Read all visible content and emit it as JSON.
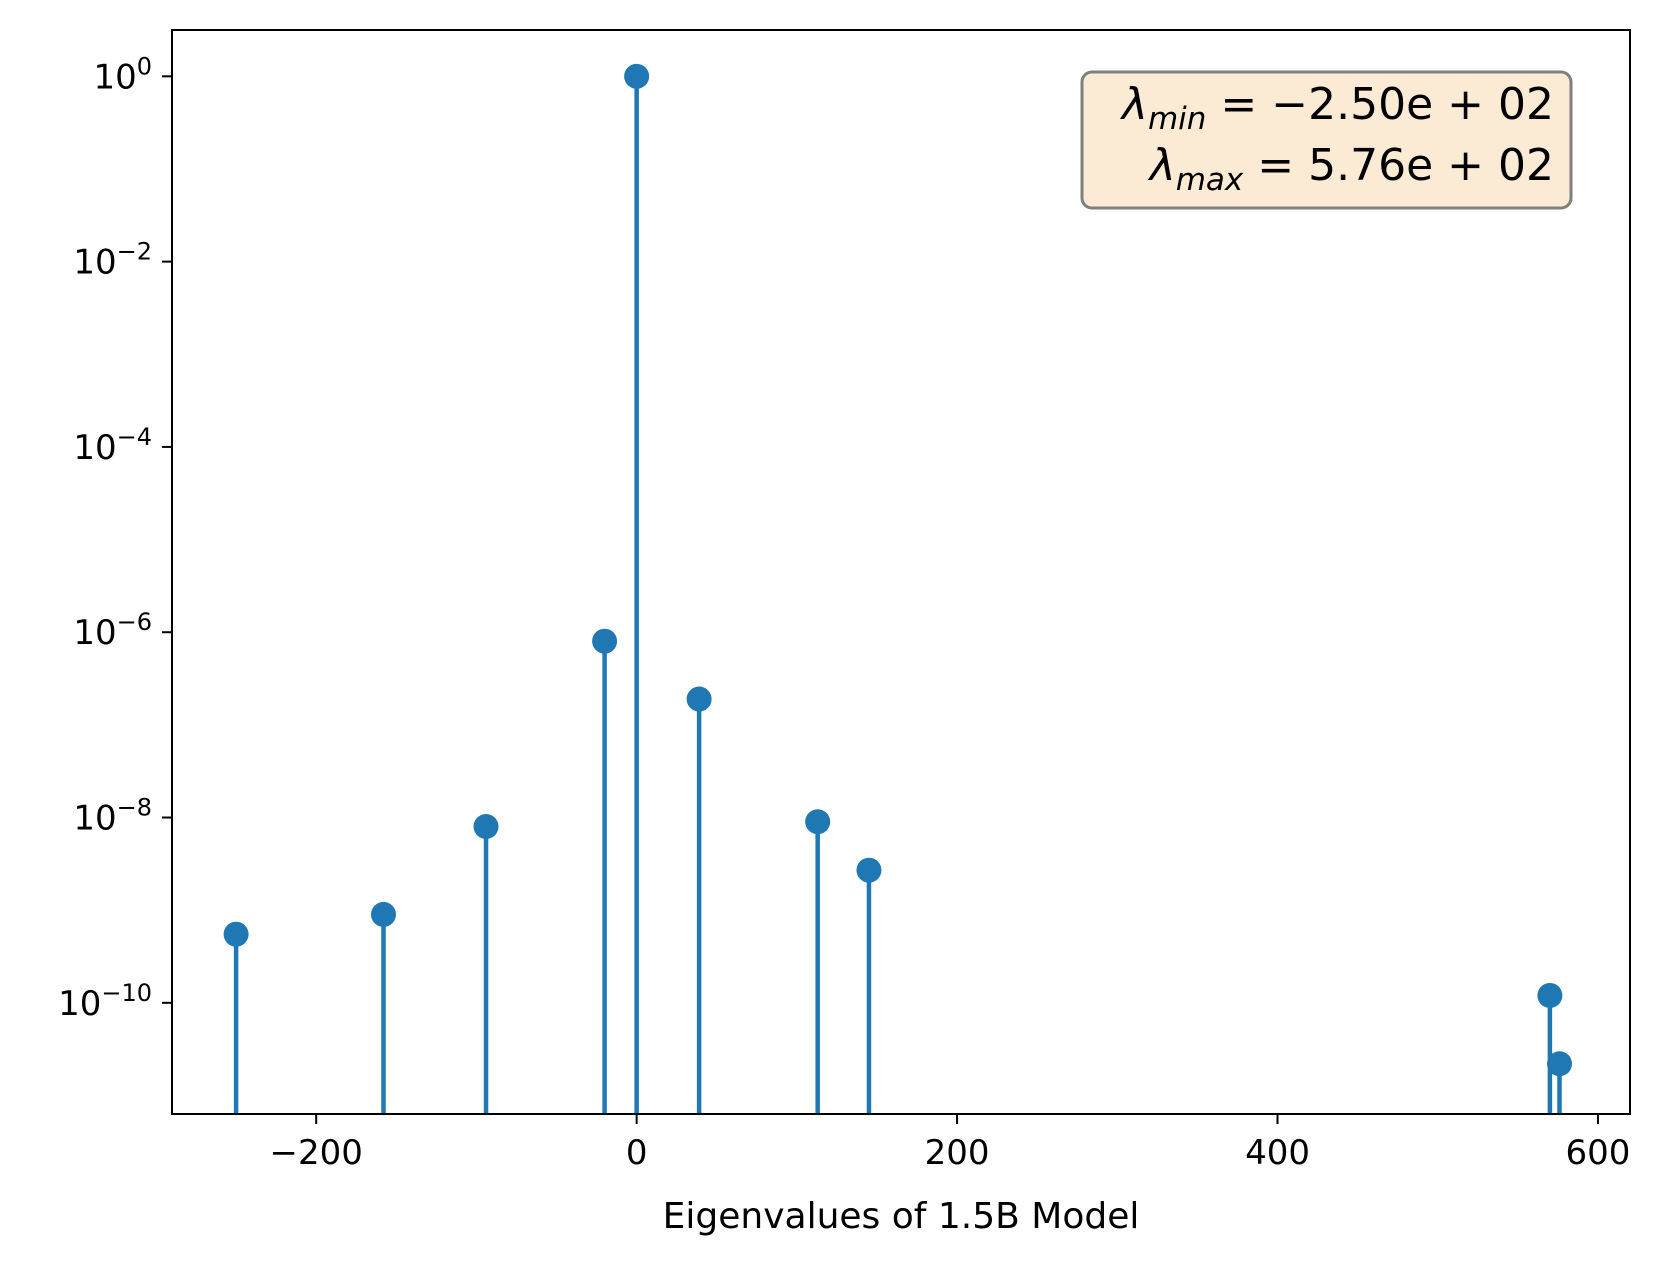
{
  "chart_data": {
    "type": "stem",
    "xlabel": "Eigenvalues of 1.5B Model",
    "ylabel": "",
    "title": "",
    "xlim": [
      -290,
      620
    ],
    "ylim_log10": [
      -11.2,
      0.5
    ],
    "yscale": "log",
    "grid": false,
    "x_ticks": [
      -200,
      0,
      200,
      400,
      600
    ],
    "x_tick_labels": [
      "−200",
      "0",
      "200",
      "400",
      "600"
    ],
    "y_ticks_exponent": [
      0,
      -2,
      -4,
      -6,
      -8,
      -10
    ],
    "y_tick_labels": [
      "10^0",
      "10^-2",
      "10^-4",
      "10^-6",
      "10^-8",
      "10^-10"
    ],
    "color": "#1f77b4",
    "points": [
      {
        "x": -250,
        "y": 5.5e-10
      },
      {
        "x": -158,
        "y": 9e-10
      },
      {
        "x": -94,
        "y": 8e-09
      },
      {
        "x": -20,
        "y": 8e-07
      },
      {
        "x": 0,
        "y": 1.0
      },
      {
        "x": 39,
        "y": 1.9e-07
      },
      {
        "x": 113,
        "y": 9e-09
      },
      {
        "x": 145,
        "y": 2.7e-09
      },
      {
        "x": 570,
        "y": 1.2e-10
      },
      {
        "x": 576,
        "y": 2.2e-11
      }
    ],
    "annotation": {
      "lines": [
        {
          "symbol": "λ",
          "sub": "min",
          "text": " = −2.50e + 02"
        },
        {
          "symbol": "λ",
          "sub": "max",
          "text": " = 5.76e + 02"
        }
      ],
      "placement": "top-right",
      "facecolor": "#fbebd5",
      "edgecolor": "#7f7f7f"
    }
  }
}
